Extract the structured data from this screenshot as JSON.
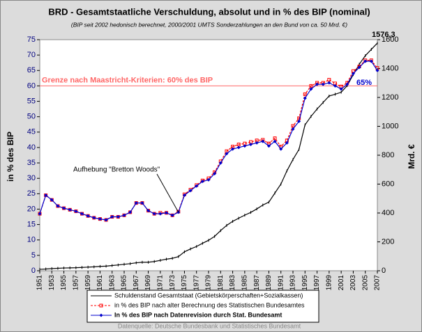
{
  "chart_data": {
    "type": "line",
    "title": "BRD - Gesamtstaatliche Verschuldung, absolut und in % des BIP (nominal)",
    "subtitle": "(BIP seit 2002 hedonisch berechnet, 2000/2001 UMTS Sonderzahlungen an den Bund von ca. 50 Mrd. €)",
    "y_label": "in % des BIP",
    "y2_label": "Mrd. €",
    "source": "Datenquelle: Deutsche Bundesbank und Statistisches Bundesamt",
    "x": [
      1951,
      1952,
      1953,
      1954,
      1955,
      1956,
      1957,
      1958,
      1959,
      1960,
      1961,
      1962,
      1963,
      1964,
      1965,
      1966,
      1967,
      1968,
      1969,
      1970,
      1971,
      1972,
      1973,
      1974,
      1975,
      1976,
      1977,
      1978,
      1979,
      1980,
      1981,
      1982,
      1983,
      1984,
      1985,
      1986,
      1987,
      1988,
      1989,
      1990,
      1991,
      1992,
      1993,
      1994,
      1995,
      1996,
      1997,
      1998,
      1999,
      2000,
      2001,
      2002,
      2003,
      2004,
      2005,
      2006,
      2007
    ],
    "xlim": [
      1951,
      2007
    ],
    "xticks": [
      1951,
      1953,
      1955,
      1957,
      1959,
      1961,
      1963,
      1965,
      1967,
      1969,
      1971,
      1973,
      1975,
      1977,
      1979,
      1981,
      1983,
      1985,
      1987,
      1989,
      1991,
      1993,
      1995,
      1997,
      1999,
      2001,
      2003,
      2005,
      2007
    ],
    "ylim": [
      0,
      75
    ],
    "yticks": [
      0,
      5,
      10,
      15,
      20,
      25,
      30,
      35,
      40,
      45,
      50,
      55,
      60,
      65,
      70,
      75
    ],
    "y2lim": [
      0,
      1600
    ],
    "y2ticks": [
      0,
      200,
      400,
      600,
      800,
      1000,
      1200,
      1400,
      1600
    ],
    "series": [
      {
        "name": "Schuldenstand Gesamtstaat (Gebietskörperschaften+Sozialkassen)",
        "color": "#000000",
        "axis": "y2",
        "marker": "tick",
        "dash": "none",
        "values": [
          10,
          12,
          15,
          17,
          19,
          20,
          21,
          23,
          25,
          27,
          30,
          32,
          36,
          40,
          45,
          49,
          55,
          59,
          59,
          64,
          72,
          80,
          86,
          98,
          131,
          151,
          168,
          190,
          211,
          238,
          278,
          314,
          342,
          364,
          385,
          404,
          428,
          455,
          475,
          538,
          600,
          692,
          770,
          840,
          1010,
          1069,
          1120,
          1165,
          1210,
          1222,
          1236,
          1282,
          1358,
          1430,
          1489,
          1533,
          1576.3
        ],
        "value_labels": [
          null,
          null,
          null,
          null,
          null,
          null,
          null,
          null,
          null,
          null,
          null,
          null,
          null,
          null,
          null,
          null,
          null,
          null,
          null,
          null,
          null,
          null,
          null,
          null,
          null,
          null,
          null,
          null,
          null,
          null,
          null,
          null,
          null,
          null,
          null,
          null,
          null,
          null,
          null,
          null,
          null,
          null,
          null,
          null,
          null,
          null,
          null,
          null,
          null,
          null,
          null,
          null,
          null,
          null,
          null,
          null,
          "1576,3"
        ]
      },
      {
        "name": "in % des BIP nach alter Berechnung des Statistischen Bundesamtes",
        "color": "#ff0000",
        "axis": "y",
        "marker": "square",
        "dash": "3,2",
        "values": [
          18.5,
          24.5,
          23,
          21,
          20.3,
          19.8,
          19.3,
          18.5,
          17.8,
          17.2,
          16.8,
          16.5,
          17.5,
          17.5,
          18,
          19,
          22,
          22,
          19.5,
          18.5,
          18.8,
          18.8,
          18,
          19.2,
          24.8,
          26.3,
          27.8,
          29.3,
          30,
          32,
          35.5,
          38.8,
          40.3,
          41,
          41.3,
          41.8,
          42.3,
          42.5,
          41.3,
          43,
          40.3,
          42.3,
          47,
          49.5,
          57.3,
          60,
          61,
          61,
          62,
          60.8,
          59.8,
          61,
          64.8,
          66.3,
          68.3,
          68.3,
          65.8
        ]
      },
      {
        "name": "In % des BIP nach Datenrevision durch Stat. Bundesamt",
        "color": "#0000cc",
        "axis": "y",
        "marker": "diamond",
        "dash": "none",
        "values": [
          18.5,
          24.5,
          23,
          21,
          20.3,
          19.8,
          19.3,
          18.5,
          17.8,
          17.2,
          16.8,
          16.5,
          17.5,
          17.5,
          18,
          19,
          22,
          22,
          19.5,
          18.5,
          18.5,
          18.8,
          18,
          19,
          24.5,
          26,
          27.5,
          29,
          29.5,
          31.5,
          35,
          38,
          39.5,
          40,
          40.5,
          41,
          41.5,
          42,
          40.5,
          42,
          39.5,
          41.5,
          46,
          48.5,
          56,
          59,
          60.5,
          60.5,
          61,
          60,
          59,
          60.5,
          64,
          66,
          68,
          68,
          65
        ],
        "value_labels": [
          null,
          null,
          null,
          null,
          null,
          null,
          null,
          null,
          null,
          null,
          null,
          null,
          null,
          null,
          null,
          null,
          null,
          null,
          null,
          null,
          null,
          null,
          null,
          null,
          null,
          null,
          null,
          null,
          null,
          null,
          null,
          null,
          null,
          null,
          null,
          null,
          null,
          null,
          null,
          null,
          null,
          null,
          null,
          null,
          null,
          null,
          null,
          null,
          null,
          null,
          null,
          null,
          null,
          null,
          null,
          null,
          "65%"
        ]
      }
    ],
    "reference_line": {
      "value": 60,
      "label": "Grenze nach Maastricht-Kriterien: 60% des BIP",
      "color": "#ff6666"
    },
    "annotation": {
      "text": "Aufhebung \"Bretton Woods\"",
      "x": 1974
    }
  }
}
